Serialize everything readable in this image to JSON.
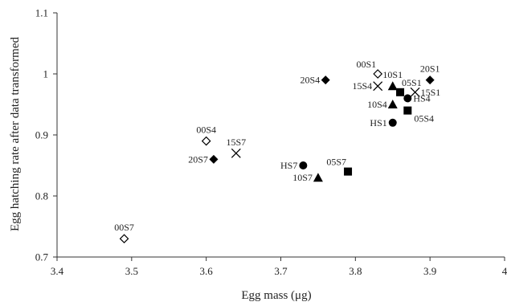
{
  "chart_data": {
    "type": "scatter",
    "xlabel": "Egg mass (μg)",
    "ylabel": "Egg hatching rate after data transformed",
    "xlim": [
      3.4,
      4.0
    ],
    "ylim": [
      0.7,
      1.1
    ],
    "x_ticks": [
      3.4,
      3.5,
      3.6,
      3.7,
      3.8,
      3.9,
      4.0
    ],
    "x_tick_labels": [
      "3.4",
      "3.5",
      "3.6",
      "3.7",
      "3.8",
      "3.9",
      "4"
    ],
    "y_ticks": [
      0.7,
      0.8,
      0.9,
      1.0,
      1.1
    ],
    "y_tick_labels": [
      "0.7",
      "0.8",
      "0.9",
      "1",
      "1.1"
    ],
    "grid": false,
    "points": [
      {
        "label": "00S7",
        "x": 3.49,
        "y": 0.73,
        "marker": "diamond-open",
        "label_pos": "above"
      },
      {
        "label": "00S4",
        "x": 3.6,
        "y": 0.89,
        "marker": "diamond-open",
        "label_pos": "above"
      },
      {
        "label": "20S7",
        "x": 3.61,
        "y": 0.86,
        "marker": "diamond",
        "label_pos": "left"
      },
      {
        "label": "15S7",
        "x": 3.64,
        "y": 0.87,
        "marker": "x",
        "label_pos": "above"
      },
      {
        "label": "HS7",
        "x": 3.73,
        "y": 0.85,
        "marker": "circle",
        "label_pos": "left"
      },
      {
        "label": "10S7",
        "x": 3.75,
        "y": 0.83,
        "marker": "triangle",
        "label_pos": "left"
      },
      {
        "label": "05S7",
        "x": 3.79,
        "y": 0.84,
        "marker": "square",
        "label_pos": "above-left"
      },
      {
        "label": "20S4",
        "x": 3.76,
        "y": 0.99,
        "marker": "diamond",
        "label_pos": "left"
      },
      {
        "label": "00S1",
        "x": 3.83,
        "y": 1.0,
        "marker": "diamond-open",
        "label_pos": "above-left"
      },
      {
        "label": "15S4",
        "x": 3.83,
        "y": 0.98,
        "marker": "x",
        "label_pos": "left"
      },
      {
        "label": "10S1",
        "x": 3.85,
        "y": 0.98,
        "marker": "triangle",
        "label_pos": "above"
      },
      {
        "label": "05S1",
        "x": 3.86,
        "y": 0.97,
        "marker": "square",
        "label_pos": "above-right"
      },
      {
        "label": "15S1",
        "x": 3.88,
        "y": 0.97,
        "marker": "x",
        "label_pos": "right"
      },
      {
        "label": "20S1",
        "x": 3.9,
        "y": 0.99,
        "marker": "diamond",
        "label_pos": "above"
      },
      {
        "label": "10S4",
        "x": 3.85,
        "y": 0.95,
        "marker": "triangle",
        "label_pos": "left"
      },
      {
        "label": "HS4",
        "x": 3.87,
        "y": 0.96,
        "marker": "circle",
        "label_pos": "right"
      },
      {
        "label": "05S4",
        "x": 3.87,
        "y": 0.94,
        "marker": "square",
        "label_pos": "below-right"
      },
      {
        "label": "HS1",
        "x": 3.85,
        "y": 0.92,
        "marker": "circle",
        "label_pos": "left"
      }
    ]
  }
}
